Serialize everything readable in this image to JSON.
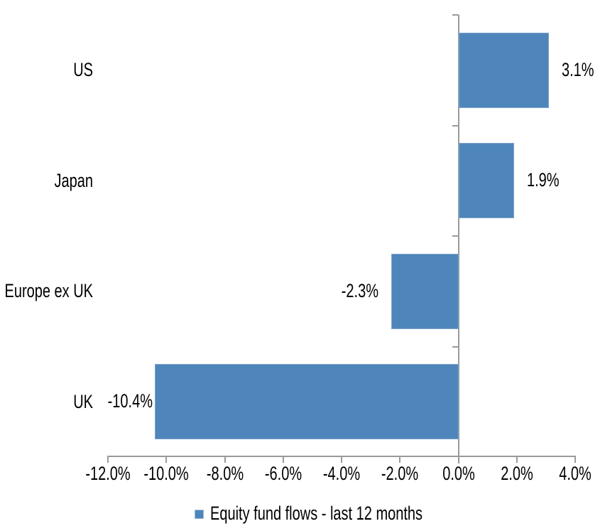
{
  "chart_data": {
    "type": "bar",
    "orientation": "horizontal",
    "title": "",
    "categories": [
      "US",
      "Japan",
      "Europe ex UK",
      "UK"
    ],
    "series": [
      {
        "name": "Equity fund flows - last 12 months",
        "values": [
          3.1,
          1.9,
          -2.3,
          -10.4
        ],
        "labels": [
          "3.1%",
          "1.9%",
          "-2.3%",
          "-10.4%"
        ],
        "color": "#4E86BC"
      }
    ],
    "xlabel": "",
    "ylabel": "",
    "xlim": [
      -12,
      4
    ],
    "x_ticks": [
      -12,
      -10,
      -8,
      -6,
      -4,
      -2,
      0,
      2,
      4
    ],
    "x_tick_labels": [
      "-12.0%",
      "-10.0%",
      "-8.0%",
      "-6.0%",
      "-4.0%",
      "-2.0%",
      "0.0%",
      "2.0%",
      "4.0%"
    ],
    "grid": false,
    "legend_position": "bottom",
    "axis_color": "#9A9A9A",
    "text_color": "#000000",
    "background": "#FFFFFF"
  }
}
